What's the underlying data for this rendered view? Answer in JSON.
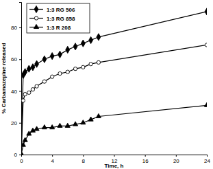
{
  "chart_data": {
    "type": "line",
    "x_label": "Time, h",
    "y_label": "% Carbamazepine released",
    "x": [
      0,
      0.25,
      0.5,
      1,
      1.5,
      2,
      3,
      4,
      5,
      6,
      7,
      8,
      9,
      10,
      24
    ],
    "series": [
      {
        "name": "1:3 RG 506",
        "color": "#000000",
        "marker": "diamond",
        "values": [
          0,
          50,
          52,
          54,
          55,
          57,
          60,
          62,
          63,
          66,
          68,
          70,
          72,
          74,
          90
        ]
      },
      {
        "name": "1:3 RG 858",
        "color": "#000000",
        "marker": "open-circle",
        "values": [
          0,
          34,
          38,
          39,
          41,
          43,
          46,
          49,
          51,
          52,
          54,
          55,
          57,
          58,
          69
        ]
      },
      {
        "name": "1:3 R 208",
        "color": "#000000",
        "marker": "triangle",
        "values": [
          0,
          6,
          9,
          13,
          15,
          16,
          17,
          17,
          18,
          18,
          19,
          20,
          22,
          24,
          31
        ]
      }
    ],
    "xlim": [
      0,
      24
    ],
    "xticks": [
      0,
      4,
      8,
      12,
      16,
      20,
      24
    ],
    "ylim": [
      0,
      96
    ],
    "yticks": [
      0,
      20,
      40,
      60,
      80
    ],
    "grid": false,
    "legend": "top-left"
  }
}
